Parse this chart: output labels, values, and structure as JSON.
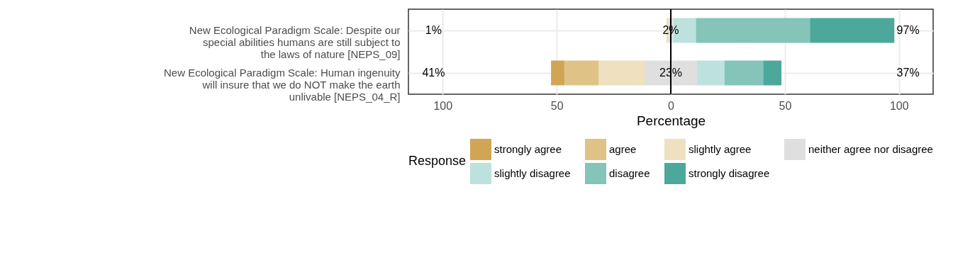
{
  "chart_data": {
    "type": "bar",
    "orientation": "horizontal",
    "categories": [
      "New Ecological Paradigm Scale: Despite our special abilities humans are still subject to the laws of nature [NEPS_09]",
      "New Ecological Paradigm Scale: Human ingenuity will insure that we do NOT make the earth unlivable [NEPS_04_R]"
    ],
    "series": [
      {
        "name": "strongly agree",
        "color": "#d0a554",
        "values": [
          null,
          6
        ],
        "base": [
          null,
          -52.5
        ]
      },
      {
        "name": "agree",
        "color": "#dfc386",
        "values": [
          null,
          15
        ],
        "base": [
          null,
          -46.5
        ]
      },
      {
        "name": "slightly agree",
        "color": "#efe0c0",
        "values": [
          1,
          20
        ],
        "base": [
          -2,
          -31.5
        ]
      },
      {
        "name": "neither agree nor disagree",
        "color": "#dfdfdf",
        "values": [
          2,
          23
        ],
        "base": [
          -1,
          -11.5
        ],
        "value_labels": [
          "2%",
          "23%"
        ]
      },
      {
        "name": "slightly disagree",
        "color": "#bde2de",
        "values": [
          10,
          12
        ],
        "base": [
          1,
          11.5
        ]
      },
      {
        "name": "disagree",
        "color": "#84c4b9",
        "values": [
          50,
          17
        ],
        "base": [
          11,
          23.5
        ]
      },
      {
        "name": "strongly disagree",
        "color": "#4ca89b",
        "values": [
          37,
          8
        ],
        "base": [
          61,
          40.5
        ]
      }
    ],
    "xlabel": "Percentage",
    "legend_title": "Response",
    "legend": "bottom",
    "grid": true,
    "xlim": [
      -115,
      115
    ],
    "xticks": [
      {
        "value": -100,
        "label": "100"
      },
      {
        "value": -50,
        "label": "50"
      },
      0,
      50,
      100
    ],
    "ref_lines": [
      {
        "axis": "x",
        "value": 0,
        "color": "#000000"
      }
    ],
    "annotations": [
      "1%",
      "97%",
      "41%",
      "37%"
    ]
  }
}
